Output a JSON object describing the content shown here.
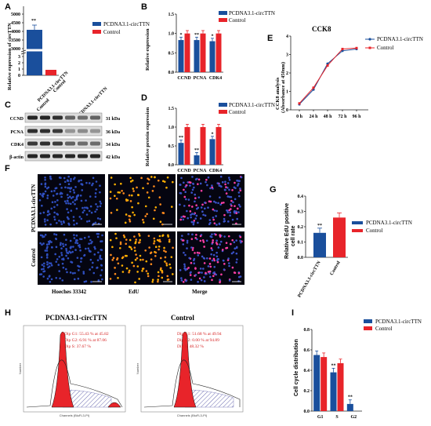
{
  "panel_labels": {
    "A": "A",
    "B": "B",
    "C": "C",
    "D": "D",
    "E": "E",
    "F": "F",
    "G": "G",
    "H": "H",
    "I": "I"
  },
  "colors": {
    "blue": "#1a4f9c",
    "red": "#e8242a"
  },
  "panelA": {
    "legend": [
      "PCDNA3.1-circTTN",
      "Control"
    ],
    "ylabel": "Relative expression of circTTN",
    "yticks": [
      "0",
      "1",
      "2",
      "3",
      "3000",
      "3500",
      "4000",
      "4500",
      "5000"
    ],
    "categories": [
      "PCDNA3.1-circTTN",
      "Control"
    ],
    "sig": "**"
  },
  "panelB": {
    "legend": [
      "PCDNA3.1-circTTN",
      "Control"
    ],
    "ylabel": "Relative expression",
    "yticks": [
      "0.0",
      "0.5",
      "1.0",
      "1.5"
    ],
    "categories": [
      "CCND",
      "PCNA",
      "CDK4"
    ],
    "sig": [
      "*",
      "**",
      "*"
    ]
  },
  "panelC": {
    "columns": [
      "Control",
      "PCDNA3.1-circTTN"
    ],
    "rows": [
      {
        "name": "CCND",
        "kda": "31 kDa"
      },
      {
        "name": "PCNA",
        "kda": "36 kDa"
      },
      {
        "name": "CDK4",
        "kda": "34 kDa"
      },
      {
        "name": "β-actin",
        "kda": "42 kDa"
      }
    ]
  },
  "panelD": {
    "legend": [
      "PCDNA3.1-circTTN",
      "Control"
    ],
    "ylabel": "Relative protein expression",
    "yticks": [
      "0.0",
      "0.5",
      "1.0",
      "1.5"
    ],
    "categories": [
      "CCND",
      "PCNA",
      "CDK4"
    ],
    "sig": [
      "**",
      "**",
      "*"
    ]
  },
  "panelE": {
    "title": "CCK8",
    "legend": [
      "PCDNA3.1-circTTN",
      "Control"
    ],
    "ylabel": "CCK8 analysis (Absorbance at 450nm)",
    "yticks": [
      "0",
      "1",
      "2",
      "3",
      "4"
    ],
    "xticks": [
      "0 h",
      "24 h",
      "48 h",
      "72 h",
      "96 h"
    ]
  },
  "panelF": {
    "rows": [
      "PCDNA3.1-circTTN",
      "Control"
    ],
    "columns": [
      "Hoeches 33342",
      "EdU",
      "Merge"
    ]
  },
  "panelG": {
    "legend": [
      "PCDNA3.1-circTTN",
      "Control"
    ],
    "ylabel": "Relative EdU positive cell rate",
    "yticks": [
      "0.0",
      "0.1",
      "0.2",
      "0.3",
      "0.4"
    ],
    "categories": [
      "PCDNA3.1-circTTN",
      "Control"
    ],
    "sig": "**"
  },
  "panelH": {
    "left_title": "PCDNA3.1-circTTN",
    "right_title": "Control",
    "left_text": [
      "Dip G1: 55.43 % at 45.82",
      "Dip G2: 6.91 % at 87.06",
      "Dip S: 37.67 %"
    ],
    "right_text": [
      "Dip G1: 51.68 % at 49.94",
      "Dip G2: 0.00 % at 94.89",
      "Dip S: 48.32 %"
    ],
    "xlabel": "Channels (BluFL3-PI)",
    "ylabel": "Number"
  },
  "panelI": {
    "legend": [
      "PCDNA3.1-circTTN",
      "Control"
    ],
    "ylabel": "Cell cycle distribution",
    "yticks": [
      "0.0",
      "0.2",
      "0.4",
      "0.6",
      "0.8"
    ],
    "categories": [
      "G1",
      "S",
      "G2"
    ],
    "sig": [
      "",
      "**",
      "**"
    ]
  },
  "chart_data": [
    {
      "type": "bar",
      "panel": "A",
      "ylabel": "Relative expression of circTTN",
      "categories": [
        "PCDNA3.1-circTTN",
        "Control"
      ],
      "values": [
        3900,
        1.0
      ],
      "ylim": [
        0,
        5000
      ]
    },
    {
      "type": "bar",
      "panel": "B",
      "ylabel": "Relative expression",
      "categories": [
        "CCND",
        "PCNA",
        "CDK4"
      ],
      "series": [
        {
          "name": "PCDNA3.1-circTTN",
          "values": [
            0.83,
            0.83,
            0.8
          ]
        },
        {
          "name": "Control",
          "values": [
            1.0,
            1.0,
            1.0
          ]
        }
      ],
      "ylim": [
        0,
        1.5
      ]
    },
    {
      "type": "bar",
      "panel": "D",
      "ylabel": "Relative protein expression",
      "categories": [
        "CCND",
        "PCNA",
        "CDK4"
      ],
      "series": [
        {
          "name": "PCDNA3.1-circTTN",
          "values": [
            0.58,
            0.25,
            0.68
          ]
        },
        {
          "name": "Control",
          "values": [
            1.0,
            1.0,
            1.0
          ]
        }
      ],
      "ylim": [
        0,
        1.5
      ]
    },
    {
      "type": "line",
      "panel": "E",
      "title": "CCK8",
      "ylabel": "CCK8 analysis (Absorbance at 450nm)",
      "x": [
        "0 h",
        "24 h",
        "48 h",
        "72 h",
        "96 h"
      ],
      "series": [
        {
          "name": "PCDNA3.1-circTTN",
          "values": [
            0.3,
            1.1,
            2.5,
            3.2,
            3.3
          ]
        },
        {
          "name": "Control",
          "values": [
            0.35,
            1.2,
            2.4,
            3.3,
            3.35
          ]
        }
      ],
      "ylim": [
        0,
        4
      ]
    },
    {
      "type": "bar",
      "panel": "G",
      "ylabel": "Relative EdU positive cell rate",
      "categories": [
        "PCDNA3.1-circTTN",
        "Control"
      ],
      "values": [
        0.16,
        0.26
      ],
      "ylim": [
        0,
        0.4
      ]
    },
    {
      "type": "bar",
      "panel": "I",
      "ylabel": "Cell cycle distribution",
      "categories": [
        "G1",
        "S",
        "G2"
      ],
      "series": [
        {
          "name": "PCDNA3.1-circTTN",
          "values": [
            0.55,
            0.38,
            0.07
          ]
        },
        {
          "name": "Control",
          "values": [
            0.53,
            0.47,
            0.0
          ]
        }
      ],
      "ylim": [
        0,
        0.8
      ]
    }
  ]
}
